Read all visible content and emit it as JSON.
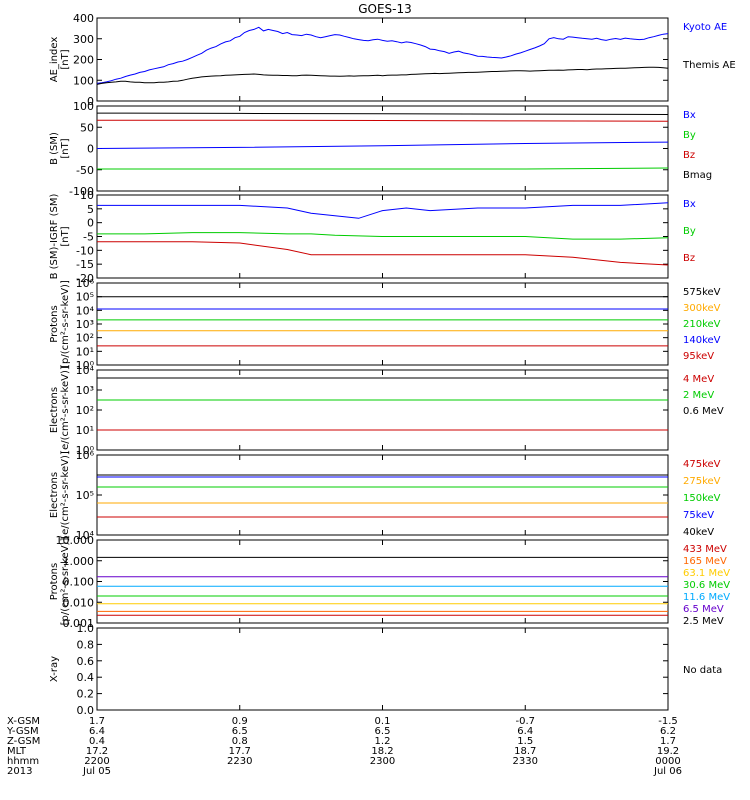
{
  "title": "GOES-13",
  "chart_data": [
    {
      "type": "line",
      "ylabel": "AE_index\n[nT]",
      "ylim": [
        0,
        400
      ],
      "yticks": [
        "0",
        "100",
        "200",
        "300",
        "400"
      ],
      "series": [
        {
          "name": "Kyoto AE",
          "color": "#0000ff",
          "x": [
            0,
            1,
            2,
            3,
            4,
            5,
            6,
            7,
            8,
            9,
            10,
            11,
            12,
            13,
            14,
            15,
            16,
            17,
            18,
            19,
            20,
            21,
            22,
            23,
            24,
            25,
            26,
            27,
            28,
            29,
            30,
            31,
            32,
            33,
            34,
            35,
            36,
            37,
            38,
            39,
            40,
            41,
            42,
            43,
            44,
            45,
            46,
            47,
            48,
            49,
            50,
            51,
            52,
            53,
            54,
            55,
            56,
            57,
            58,
            59,
            60,
            61,
            62,
            63,
            64,
            65,
            66,
            67,
            68,
            69,
            70,
            71,
            72,
            73,
            74,
            75,
            76,
            77,
            78,
            79,
            80,
            81,
            82,
            83,
            84,
            85,
            86,
            87,
            88,
            89,
            90,
            91,
            92,
            93,
            94,
            95,
            96,
            97,
            98,
            99,
            100,
            101,
            102,
            103,
            104,
            105,
            106,
            107,
            108,
            109,
            110,
            111,
            112,
            113,
            114,
            115,
            116,
            117,
            118,
            119,
            120
          ],
          "values": [
            85,
            88,
            92,
            98,
            105,
            110,
            118,
            125,
            130,
            138,
            142,
            150,
            155,
            160,
            165,
            175,
            180,
            188,
            192,
            200,
            210,
            220,
            230,
            245,
            255,
            262,
            275,
            285,
            290,
            305,
            312,
            330,
            340,
            345,
            355,
            338,
            345,
            340,
            335,
            325,
            330,
            320,
            318,
            315,
            322,
            318,
            310,
            305,
            310,
            315,
            320,
            318,
            312,
            306,
            300,
            296,
            292,
            290,
            295,
            298,
            292,
            288,
            290,
            286,
            280,
            285,
            282,
            276,
            270,
            262,
            250,
            248,
            242,
            238,
            230,
            236,
            240,
            232,
            228,
            222,
            216,
            215,
            212,
            210,
            209,
            207,
            212,
            218,
            226,
            232,
            240,
            248,
            256,
            265,
            276,
            300,
            305,
            300,
            298,
            310,
            308,
            305,
            302,
            300,
            298,
            302,
            296,
            292,
            298,
            301,
            297,
            303,
            300,
            298,
            296,
            298,
            305,
            310,
            316,
            322,
            325
          ]
        },
        {
          "name": "Themis AE",
          "color": "#000000",
          "x": [
            0,
            1,
            2,
            3,
            4,
            5,
            6,
            7,
            8,
            9,
            10,
            11,
            12,
            13,
            14,
            15,
            16,
            17,
            18,
            19,
            20,
            21,
            22,
            23,
            24,
            25,
            26,
            27,
            28,
            29,
            30,
            31,
            32,
            33,
            34,
            35,
            36,
            37,
            38,
            39,
            40,
            41,
            42,
            43,
            44,
            45,
            46,
            47,
            48,
            49,
            50,
            51,
            52,
            53,
            54,
            55,
            56,
            57,
            58,
            59,
            60,
            61,
            62,
            63,
            64,
            65,
            66,
            67,
            68,
            69,
            70,
            71,
            72,
            73,
            74,
            75,
            76,
            77,
            78,
            79,
            80,
            81,
            82,
            83,
            84,
            85,
            86,
            87,
            88,
            89,
            90,
            91,
            92,
            93,
            94,
            95,
            96,
            97,
            98,
            99,
            100,
            101,
            102,
            103,
            104,
            105,
            106,
            107,
            108,
            109,
            110,
            111,
            112,
            113,
            114,
            115,
            116,
            117,
            118,
            119,
            120
          ],
          "values": [
            80,
            85,
            88,
            90,
            92,
            95,
            95,
            92,
            90,
            90,
            88,
            88,
            88,
            90,
            90,
            92,
            95,
            96,
            100,
            105,
            110,
            113,
            116,
            118,
            120,
            121,
            122,
            124,
            125,
            126,
            127,
            128,
            129,
            130,
            128,
            126,
            125,
            124,
            124,
            123,
            123,
            122,
            122,
            124,
            125,
            124,
            123,
            122,
            121,
            120,
            120,
            119,
            120,
            121,
            120,
            121,
            122,
            122,
            123,
            124,
            122,
            124,
            125,
            125,
            126,
            126,
            128,
            129,
            130,
            131,
            132,
            133,
            132,
            133,
            134,
            135,
            136,
            137,
            138,
            138,
            139,
            140,
            141,
            142,
            142,
            143,
            144,
            145,
            146,
            146,
            145,
            144,
            145,
            146,
            147,
            148,
            148,
            149,
            148,
            150,
            151,
            152,
            152,
            151,
            153,
            154,
            154,
            155,
            156,
            157,
            158,
            158,
            159,
            160,
            161,
            162,
            163,
            163,
            162,
            160,
            158
          ]
        }
      ]
    },
    {
      "type": "line",
      "ylabel": "B (SM)\n[nT]",
      "ylim": [
        -120,
        120
      ],
      "yticks": [
        "-100",
        "-50",
        "0",
        "50",
        "100"
      ],
      "series": [
        {
          "name": "Bx",
          "color": "#0000ff",
          "x": [
            0,
            30,
            60,
            90,
            120
          ],
          "values": [
            0,
            3,
            8,
            14,
            18
          ]
        },
        {
          "name": "By",
          "color": "#00cc00",
          "x": [
            0,
            30,
            60,
            90,
            120
          ],
          "values": [
            -58,
            -58,
            -58,
            -58,
            -55
          ]
        },
        {
          "name": "Bz",
          "color": "#cc0000",
          "x": [
            0,
            30,
            60,
            90,
            120
          ],
          "values": [
            80,
            80,
            79,
            78,
            77
          ]
        },
        {
          "name": "Bmag",
          "color": "#000000",
          "x": [
            0,
            30,
            60,
            90,
            120
          ],
          "values": [
            100,
            99,
            98,
            97,
            96
          ]
        }
      ]
    },
    {
      "type": "line",
      "ylabel": "B (SM)-IGRF (SM)\n[nT]",
      "ylim": [
        -22,
        10
      ],
      "yticks": [
        "-20",
        "-15",
        "-10",
        "-5",
        "0",
        "5",
        "10"
      ],
      "series": [
        {
          "name": "Bx",
          "color": "#0000ff",
          "x": [
            0,
            10,
            20,
            30,
            40,
            45,
            50,
            55,
            60,
            65,
            70,
            80,
            90,
            100,
            110,
            120
          ],
          "values": [
            6,
            6,
            6,
            6,
            5,
            3,
            2,
            1,
            4,
            5,
            4,
            5,
            5,
            6,
            6,
            7
          ]
        },
        {
          "name": "By",
          "color": "#00cc00",
          "x": [
            0,
            10,
            20,
            30,
            40,
            45,
            50,
            60,
            70,
            80,
            90,
            100,
            110,
            120
          ],
          "values": [
            -5,
            -5,
            -4.5,
            -4.5,
            -5,
            -5,
            -5.5,
            -6,
            -6,
            -6,
            -6,
            -7,
            -7,
            -6.5
          ]
        },
        {
          "name": "Bz",
          "color": "#cc0000",
          "x": [
            0,
            10,
            20,
            30,
            40,
            45,
            50,
            60,
            70,
            80,
            90,
            100,
            110,
            120
          ],
          "values": [
            -8,
            -8,
            -8,
            -8.5,
            -11,
            -13,
            -13,
            -13,
            -13,
            -13,
            -13,
            -14,
            -16,
            -17
          ]
        }
      ]
    },
    {
      "type": "line",
      "scale": "log",
      "ylabel": "Protons\n[p/(cm²-s-sr-keV)]",
      "ylim_exp": [
        0,
        6
      ],
      "yticks": [
        "10⁰",
        "10¹",
        "10²",
        "10³",
        "10⁴",
        "10⁵",
        "10⁶"
      ],
      "series": [
        {
          "name": "575keV",
          "color": "#000000",
          "x": [
            0,
            60,
            120
          ],
          "values": [
            5.0,
            5.0,
            5.0
          ]
        },
        {
          "name": "300keV",
          "color": "#ffaa00",
          "x": [
            0,
            60,
            120
          ],
          "values": [
            2.5,
            2.5,
            2.5
          ]
        },
        {
          "name": "210keV",
          "color": "#00cc00",
          "x": [
            0,
            60,
            120
          ],
          "values": [
            3.3,
            3.3,
            3.3
          ]
        },
        {
          "name": "140keV",
          "color": "#0000ff",
          "x": [
            0,
            60,
            120
          ],
          "values": [
            4.1,
            4.1,
            4.1
          ]
        },
        {
          "name": "95keV",
          "color": "#cc0000",
          "x": [
            0,
            60,
            120
          ],
          "values": [
            1.4,
            1.4,
            1.4
          ]
        }
      ]
    },
    {
      "type": "line",
      "scale": "log",
      "ylabel": "Electrons\n[e/(cm²-s-sr-keV)]",
      "ylim_exp": [
        0,
        4
      ],
      "yticks": [
        "10⁰",
        "10¹",
        "10²",
        "10³",
        "10⁴"
      ],
      "series": [
        {
          "name": "4 MeV",
          "color": "#cc0000",
          "x": [
            0,
            60,
            120
          ],
          "values": [
            1.0,
            1.0,
            1.0
          ]
        },
        {
          "name": "2 MeV",
          "color": "#00cc00",
          "x": [
            0,
            60,
            120
          ],
          "values": [
            2.5,
            2.5,
            2.5
          ]
        },
        {
          "name": "0.6 MeV",
          "color": "#000000",
          "x": [
            0,
            60,
            120
          ],
          "values": [
            3.6,
            3.6,
            3.6
          ]
        }
      ]
    },
    {
      "type": "line",
      "scale": "log",
      "ylabel": "Electrons\n[e/(cm²-s-sr-keV)]",
      "ylim_exp": [
        3,
        7
      ],
      "yticks": [
        "10⁴",
        "10⁵",
        "10⁶"
      ],
      "series": [
        {
          "name": "475keV",
          "color": "#cc0000",
          "x": [
            0,
            60,
            120
          ],
          "values": [
            3.9,
            3.9,
            3.9
          ]
        },
        {
          "name": "275keV",
          "color": "#ffaa00",
          "x": [
            0,
            60,
            120
          ],
          "values": [
            4.6,
            4.6,
            4.6
          ]
        },
        {
          "name": "150keV",
          "color": "#00cc00",
          "x": [
            0,
            60,
            120
          ],
          "values": [
            5.4,
            5.4,
            5.4
          ]
        },
        {
          "name": "75keV",
          "color": "#0000ff",
          "x": [
            0,
            60,
            120
          ],
          "values": [
            5.9,
            5.9,
            5.9
          ]
        },
        {
          "name": "40keV",
          "color": "#000000",
          "x": [
            0,
            60,
            120
          ],
          "values": [
            6.0,
            6.0,
            6.0
          ]
        }
      ]
    },
    {
      "type": "line",
      "scale": "log",
      "ylabel": "Protons\n[p/(cm²-s-sr-keV)]",
      "ylim_exp": [
        -3.2,
        1.1
      ],
      "yticks": [
        "0.001",
        "0.010",
        "0.100",
        "1.000",
        "10.000"
      ],
      "series": [
        {
          "name": "433 MeV",
          "color": "#cc0000",
          "x": [
            0,
            60,
            120
          ],
          "values": [
            -2.8,
            -2.8,
            -2.8
          ]
        },
        {
          "name": "165 MeV",
          "color": "#ff6600",
          "x": [
            0,
            60,
            120
          ],
          "values": [
            -2.6,
            -2.6,
            -2.6
          ]
        },
        {
          "name": "63.1 MeV",
          "color": "#ffcc00",
          "x": [
            0,
            60,
            120
          ],
          "values": [
            -2.2,
            -2.2,
            -2.2
          ]
        },
        {
          "name": "30.6 MeV",
          "color": "#00cc00",
          "x": [
            0,
            60,
            120
          ],
          "values": [
            -1.8,
            -1.8,
            -1.8
          ]
        },
        {
          "name": "11.6 MeV",
          "color": "#00aaff",
          "x": [
            0,
            60,
            120
          ],
          "values": [
            -1.3,
            -1.3,
            -1.3
          ]
        },
        {
          "name": "6.5 MeV",
          "color": "#6600cc",
          "x": [
            0,
            60,
            120
          ],
          "values": [
            -0.8,
            -0.8,
            -0.8
          ]
        },
        {
          "name": "2.5 MeV",
          "color": "#000000",
          "x": [
            0,
            60,
            120
          ],
          "values": [
            0.2,
            0.2,
            0.2
          ]
        }
      ]
    },
    {
      "type": "line",
      "ylabel": "X-ray",
      "ylim": [
        0,
        1
      ],
      "yticks": [
        "0.0",
        "0.2",
        "0.4",
        "0.6",
        "0.8",
        "1.0"
      ],
      "no_data": "No data",
      "series": []
    }
  ],
  "footer": {
    "row_labels": [
      "X-GSM",
      "Y-GSM",
      "Z-GSM",
      "MLT",
      "hhmm",
      "2013"
    ],
    "columns": [
      [
        "1.7",
        "6.4",
        "0.4",
        "17.2",
        "2200",
        "Jul 05"
      ],
      [
        "0.9",
        "6.5",
        "0.8",
        "17.7",
        "2230",
        ""
      ],
      [
        "0.1",
        "6.5",
        "1.2",
        "18.2",
        "2300",
        ""
      ],
      [
        "-0.7",
        "6.4",
        "1.5",
        "18.7",
        "2330",
        ""
      ],
      [
        "-1.5",
        "6.2",
        "1.7",
        "19.2",
        "0000",
        "Jul 06"
      ]
    ]
  }
}
